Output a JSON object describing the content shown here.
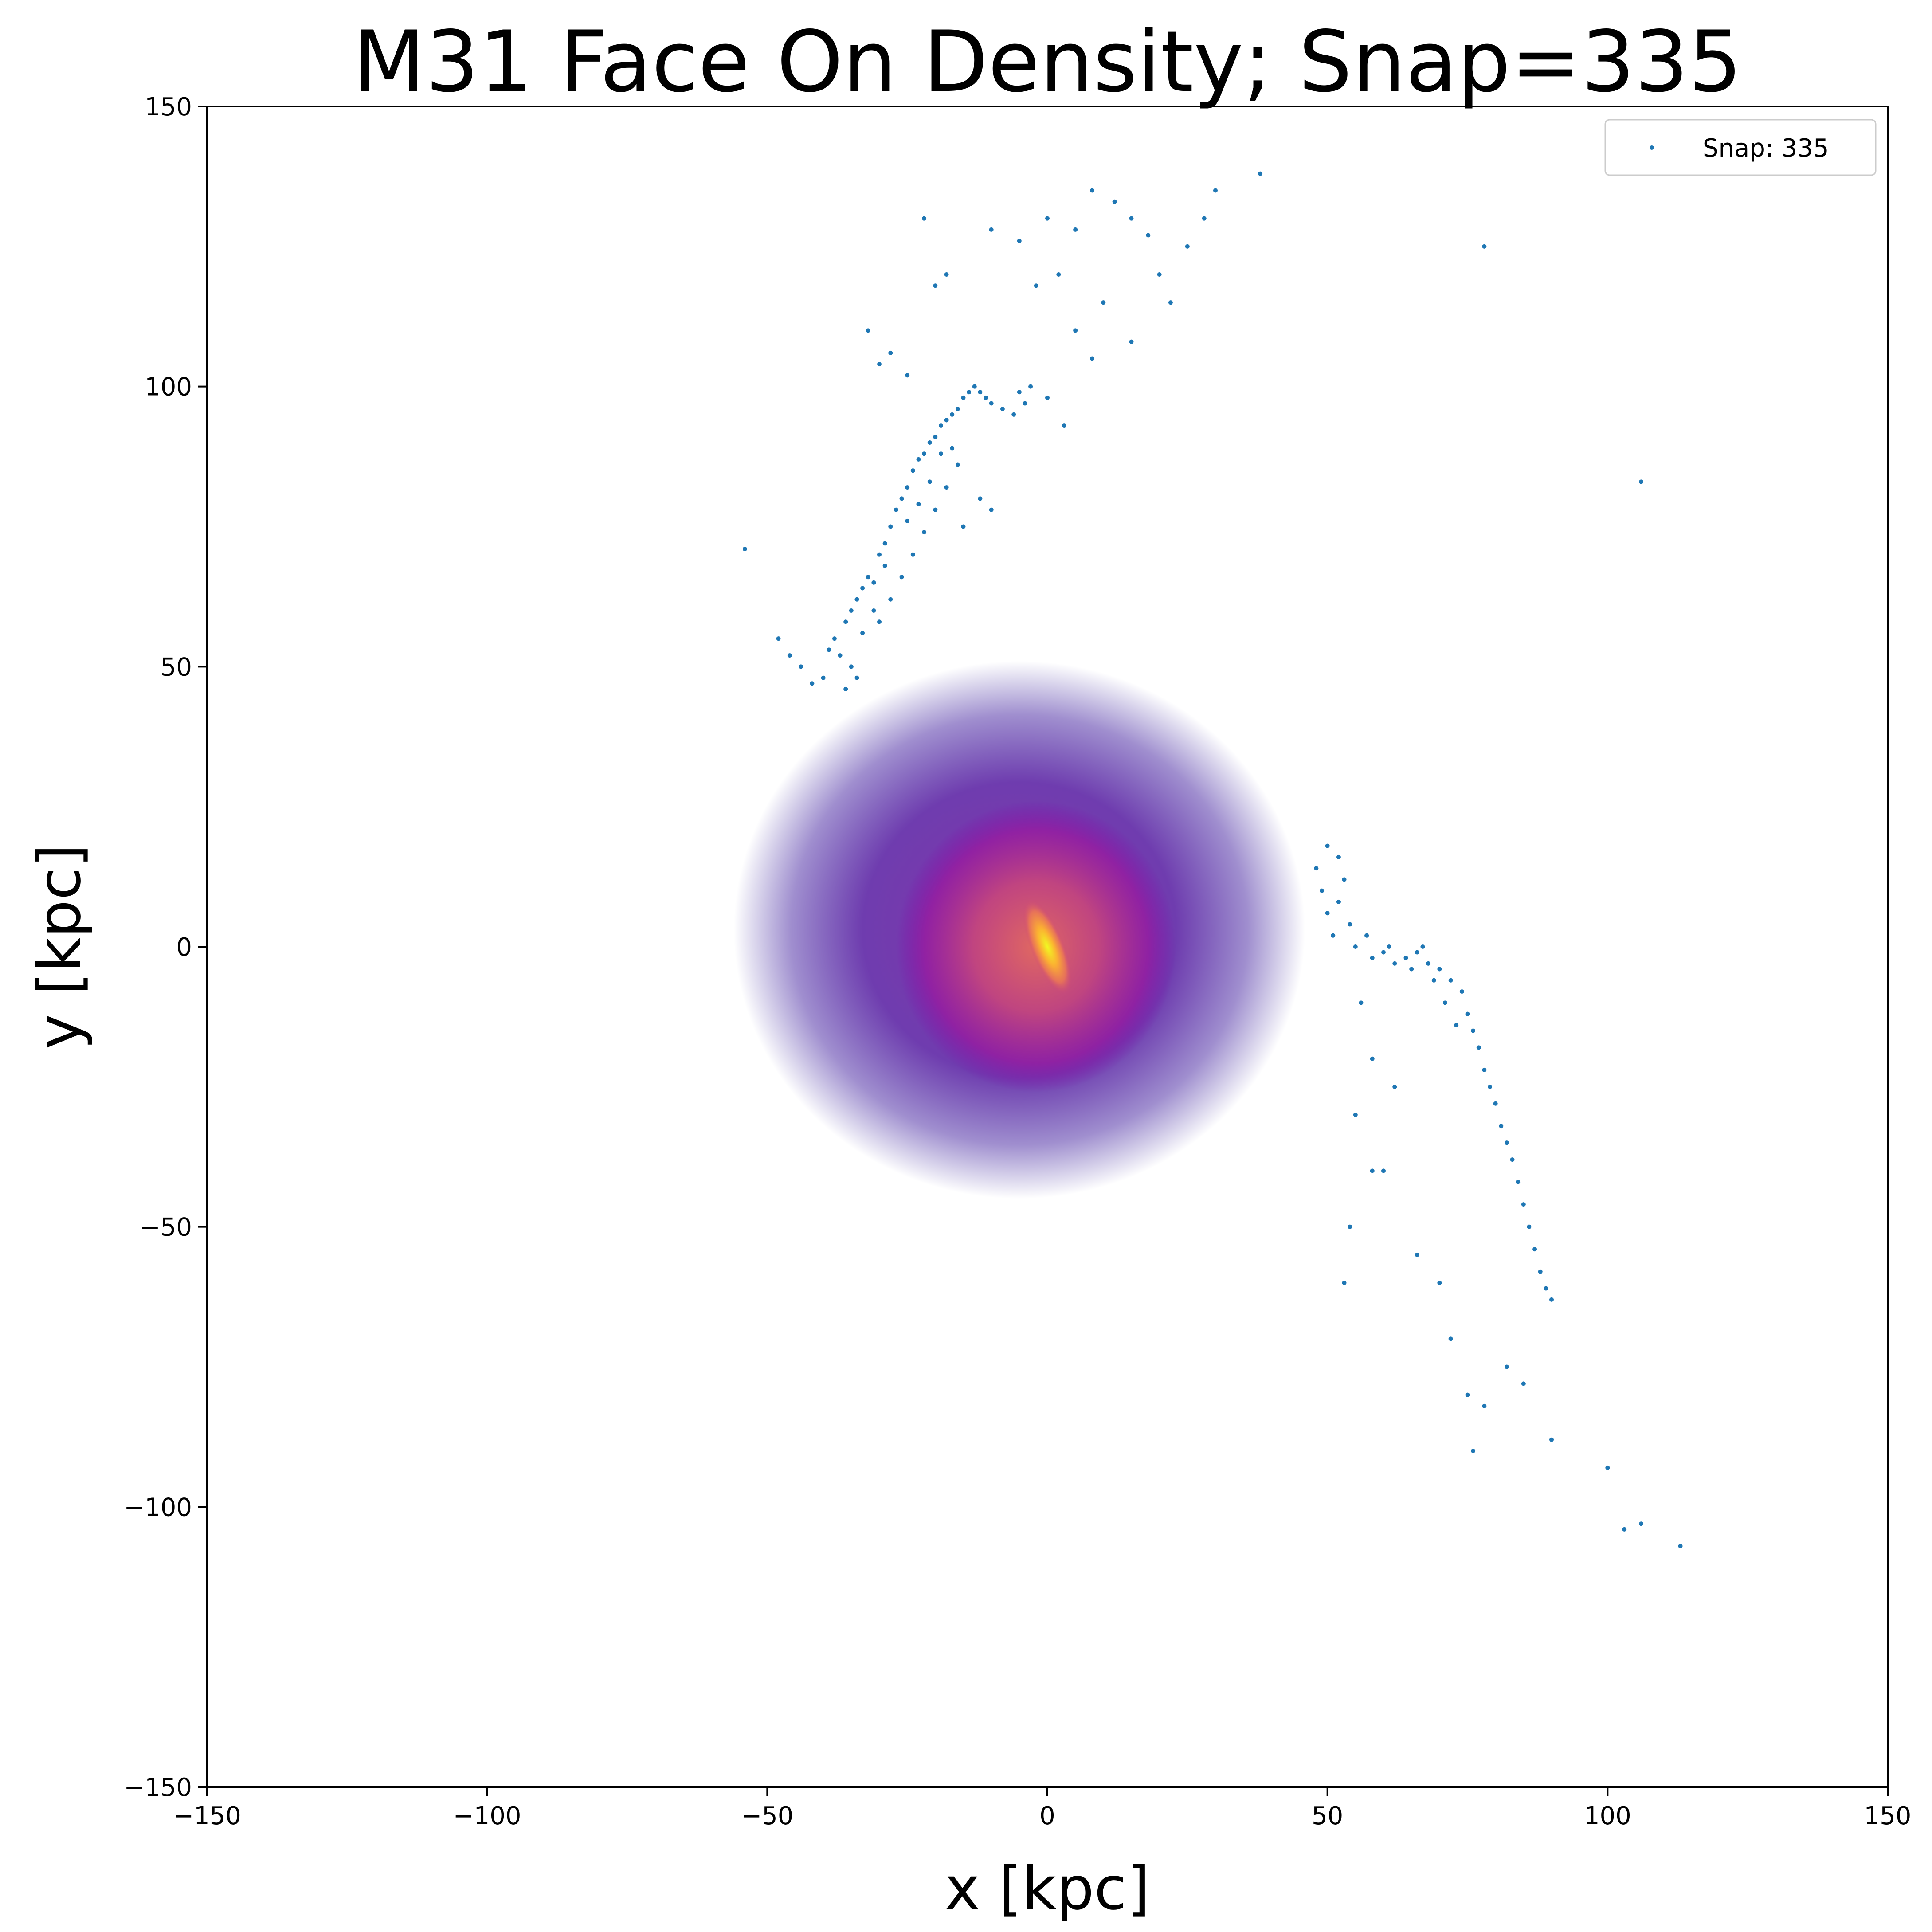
{
  "chart_data": {
    "type": "scatter",
    "title": "M31 Face On Density; Snap=335",
    "xlabel": "x [kpc]",
    "ylabel": "y [kpc]",
    "xlim": [
      -150,
      150
    ],
    "ylim": [
      -150,
      150
    ],
    "xticks": [
      -150,
      -100,
      -50,
      0,
      50,
      100,
      150
    ],
    "yticks": [
      -150,
      -100,
      -50,
      0,
      50,
      100,
      150
    ],
    "xtick_labels": [
      "−150",
      "−100",
      "−50",
      "0",
      "50",
      "100",
      "150"
    ],
    "ytick_labels": [
      "−150",
      "−100",
      "−50",
      "0",
      "50",
      "100",
      "150"
    ],
    "grid": false,
    "legend": {
      "placement": "top-right",
      "entries": [
        "Snap: 335"
      ]
    },
    "density": {
      "colormap": "plasma",
      "center": [
        0,
        0
      ],
      "extent_radius": 50
    },
    "series": [
      {
        "name": "Snap: 335",
        "color": "#1f77b4",
        "marker": "point",
        "points": [
          [
            -38,
            55
          ],
          [
            -37,
            52
          ],
          [
            -36,
            58
          ],
          [
            -35,
            50
          ],
          [
            -34,
            62
          ],
          [
            -33,
            64
          ],
          [
            -32,
            66
          ],
          [
            -31,
            60
          ],
          [
            -30,
            70
          ],
          [
            -29,
            72
          ],
          [
            -28,
            75
          ],
          [
            -27,
            78
          ],
          [
            -26,
            80
          ],
          [
            -25,
            82
          ],
          [
            -24,
            85
          ],
          [
            -23,
            87
          ],
          [
            -22,
            88
          ],
          [
            -21,
            90
          ],
          [
            -20,
            91
          ],
          [
            -19,
            93
          ],
          [
            -18,
            94
          ],
          [
            -17,
            95
          ],
          [
            -16,
            96
          ],
          [
            -15,
            98
          ],
          [
            -14,
            99
          ],
          [
            -13,
            100
          ],
          [
            -12,
            99
          ],
          [
            -11,
            98
          ],
          [
            -10,
            97
          ],
          [
            -8,
            96
          ],
          [
            -6,
            95
          ],
          [
            -4,
            97
          ],
          [
            -40,
            48
          ],
          [
            -42,
            47
          ],
          [
            -44,
            50
          ],
          [
            -46,
            52
          ],
          [
            -39,
            53
          ],
          [
            -36,
            46
          ],
          [
            -34,
            48
          ],
          [
            -33,
            56
          ],
          [
            -30,
            58
          ],
          [
            -28,
            62
          ],
          [
            -26,
            66
          ],
          [
            -24,
            70
          ],
          [
            -22,
            74
          ],
          [
            -20,
            78
          ],
          [
            -18,
            82
          ],
          [
            -16,
            86
          ],
          [
            -35,
            60
          ],
          [
            -31,
            65
          ],
          [
            -29,
            68
          ],
          [
            -25,
            76
          ],
          [
            -23,
            79
          ],
          [
            -21,
            83
          ],
          [
            -19,
            88
          ],
          [
            -17,
            89
          ],
          [
            -32,
            110
          ],
          [
            -28,
            106
          ],
          [
            -30,
            104
          ],
          [
            -25,
            102
          ],
          [
            -20,
            118
          ],
          [
            -18,
            120
          ],
          [
            -22,
            130
          ],
          [
            -10,
            128
          ],
          [
            -5,
            126
          ],
          [
            0,
            130
          ],
          [
            5,
            128
          ],
          [
            8,
            135
          ],
          [
            12,
            133
          ],
          [
            15,
            130
          ],
          [
            18,
            127
          ],
          [
            20,
            120
          ],
          [
            25,
            125
          ],
          [
            28,
            130
          ],
          [
            30,
            135
          ],
          [
            10,
            115
          ],
          [
            5,
            110
          ],
          [
            15,
            108
          ],
          [
            8,
            105
          ],
          [
            2,
            120
          ],
          [
            -2,
            118
          ],
          [
            22,
            115
          ],
          [
            38,
            138
          ],
          [
            78,
            125
          ],
          [
            106,
            83
          ],
          [
            -54,
            71
          ],
          [
            -48,
            55
          ],
          [
            -10,
            78
          ],
          [
            -15,
            75
          ],
          [
            -12,
            80
          ],
          [
            -5,
            99
          ],
          [
            -3,
            100
          ],
          [
            0,
            98
          ],
          [
            3,
            93
          ],
          [
            48,
            14
          ],
          [
            49,
            10
          ],
          [
            50,
            6
          ],
          [
            51,
            2
          ],
          [
            52,
            8
          ],
          [
            53,
            12
          ],
          [
            50,
            18
          ],
          [
            52,
            16
          ],
          [
            54,
            4
          ],
          [
            55,
            0
          ],
          [
            57,
            2
          ],
          [
            58,
            -2
          ],
          [
            60,
            -1
          ],
          [
            62,
            -3
          ],
          [
            64,
            -2
          ],
          [
            66,
            -1
          ],
          [
            67,
            0
          ],
          [
            68,
            -3
          ],
          [
            70,
            -4
          ],
          [
            72,
            -6
          ],
          [
            74,
            -8
          ],
          [
            75,
            -12
          ],
          [
            76,
            -15
          ],
          [
            77,
            -18
          ],
          [
            78,
            -22
          ],
          [
            79,
            -25
          ],
          [
            80,
            -28
          ],
          [
            81,
            -32
          ],
          [
            82,
            -35
          ],
          [
            83,
            -38
          ],
          [
            84,
            -42
          ],
          [
            85,
            -46
          ],
          [
            86,
            -50
          ],
          [
            87,
            -54
          ],
          [
            88,
            -58
          ],
          [
            89,
            -61
          ],
          [
            90,
            -63
          ],
          [
            71,
            -10
          ],
          [
            73,
            -14
          ],
          [
            69,
            -6
          ],
          [
            65,
            -4
          ],
          [
            61,
            0
          ],
          [
            56,
            -10
          ],
          [
            58,
            -20
          ],
          [
            55,
            -30
          ],
          [
            54,
            -50
          ],
          [
            53,
            -60
          ],
          [
            60,
            -40
          ],
          [
            66,
            -55
          ],
          [
            70,
            -60
          ],
          [
            72,
            -70
          ],
          [
            75,
            -80
          ],
          [
            78,
            -82
          ],
          [
            82,
            -75
          ],
          [
            85,
            -78
          ],
          [
            90,
            -88
          ],
          [
            100,
            -93
          ],
          [
            103,
            -104
          ],
          [
            106,
            -103
          ],
          [
            113,
            -107
          ],
          [
            76,
            -90
          ],
          [
            62,
            -25
          ],
          [
            58,
            -40
          ]
        ]
      }
    ]
  }
}
